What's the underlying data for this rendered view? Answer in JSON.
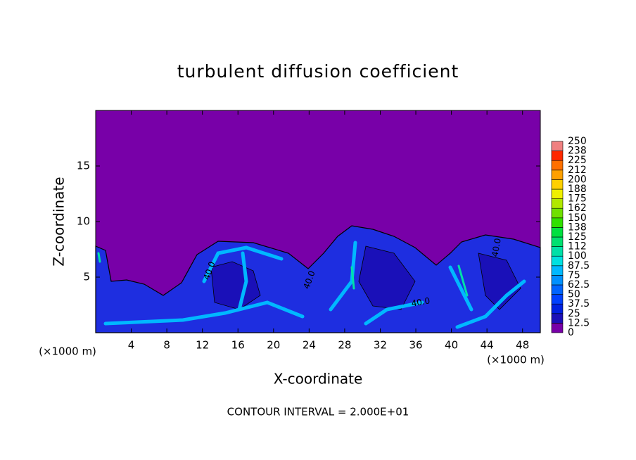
{
  "chart_data": {
    "type": "contour",
    "title": "turbulent diffusion coefficient",
    "x_label": "X-coordinate",
    "y_label": "Z-coordinate",
    "x_unit": "(×1000 m)",
    "y_unit": "(×1000 m)",
    "annotation": "CONTOUR INTERVAL = 2.000E+01",
    "contour_labels": [
      "40.0",
      "40.0",
      "40.0",
      "40.0"
    ],
    "xlim": [
      0,
      50
    ],
    "xticks": [
      4,
      8,
      12,
      16,
      20,
      24,
      28,
      32,
      36,
      40,
      44,
      48
    ],
    "ylim": [
      0,
      20
    ],
    "yticks": [
      5,
      10,
      15
    ],
    "colorbar": {
      "levels": [
        0,
        12.5,
        25,
        37.5,
        50,
        62.5,
        75,
        87.5,
        100,
        {
          "value": 112.5,
          "label": "112"
        },
        125,
        {
          "value": 137.5,
          "label": "138"
        },
        150,
        {
          "value": 162.5,
          "label": "162"
        },
        175,
        {
          "value": 187.5,
          "label": "188"
        },
        200,
        {
          "value": 212.5,
          "label": "212"
        },
        225,
        {
          "value": 237.5,
          "label": "238"
        },
        250
      ],
      "colors": [
        "#7800a8",
        "#1c10b8",
        "#0020e0",
        "#0040ff",
        "#0064ff",
        "#0090ff",
        "#00b8ff",
        "#00e0e0",
        "#00e0a8",
        "#00e070",
        "#00e040",
        "#30e000",
        "#70e000",
        "#b0e800",
        "#f0f000",
        "#ffd000",
        "#ffa000",
        "#ff7000",
        "#ff2800",
        "#f08080"
      ]
    }
  }
}
